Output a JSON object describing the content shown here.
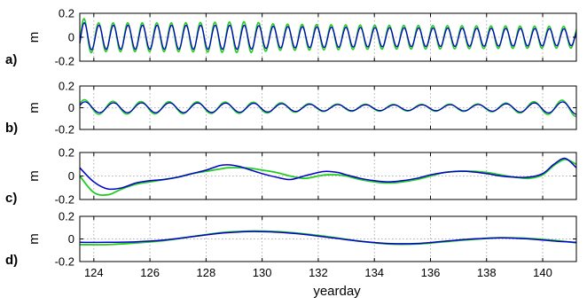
{
  "chart_data": {
    "type": "line",
    "xlabel": "yearday",
    "xlim": [
      123.5,
      141.2
    ],
    "xticks": [
      124,
      126,
      128,
      130,
      132,
      134,
      136,
      138,
      140
    ],
    "grid": true,
    "colors": {
      "series_a": "#0000c8",
      "series_b": "#22cc22"
    },
    "panels": [
      {
        "label": "a)",
        "ylabel": "m",
        "ylim": [
          -0.2,
          0.2
        ],
        "yticks": [
          0.2,
          0,
          -0.2
        ],
        "model": {
          "type": "oscillation",
          "period_days": 0.518,
          "phase_days": 0.25,
          "envelope_x": [
            123.5,
            124.0,
            127.0,
            129.5,
            130.5,
            134.0,
            138.0,
            141.2
          ],
          "amp_blue": [
            0.13,
            0.1,
            0.1,
            0.1,
            0.09,
            0.08,
            0.075,
            0.07
          ],
          "amp_green": [
            0.17,
            0.12,
            0.12,
            0.13,
            0.11,
            0.1,
            0.095,
            0.09
          ]
        }
      },
      {
        "label": "b)",
        "ylabel": "m",
        "ylim": [
          -0.2,
          0.2
        ],
        "yticks": [
          0.2,
          0,
          -0.2
        ],
        "model": {
          "type": "oscillation",
          "period_days": 1.0,
          "phase_days": 0.45,
          "envelope_x": [
            123.5,
            124.0,
            127.0,
            130.0,
            132.0,
            135.0,
            138.0,
            140.5,
            141.2
          ],
          "amp_blue": [
            0.06,
            0.045,
            0.045,
            0.04,
            0.03,
            0.025,
            0.03,
            0.05,
            0.06
          ],
          "amp_green": [
            0.08,
            0.06,
            0.055,
            0.05,
            0.035,
            0.03,
            0.035,
            0.065,
            0.08
          ]
        }
      },
      {
        "label": "c)",
        "ylabel": "m",
        "ylim": [
          -0.2,
          0.2
        ],
        "yticks": [
          0.2,
          0,
          -0.2
        ],
        "blue": {
          "x": [
            123.5,
            124.0,
            124.5,
            125.0,
            125.5,
            126.0,
            126.5,
            127.0,
            127.5,
            128.0,
            128.5,
            128.8,
            129.2,
            129.6,
            130.0,
            130.5,
            131.0,
            131.5,
            132.0,
            132.3,
            132.7,
            133.0,
            133.5,
            134.0,
            134.5,
            135.0,
            135.5,
            136.0,
            136.5,
            137.0,
            137.5,
            138.0,
            138.5,
            139.0,
            139.5,
            140.0,
            140.4,
            140.8,
            141.2
          ],
          "y": [
            0.07,
            -0.05,
            -0.11,
            -0.1,
            -0.06,
            -0.04,
            -0.03,
            -0.01,
            0.02,
            0.05,
            0.09,
            0.095,
            0.08,
            0.05,
            0.02,
            -0.01,
            -0.03,
            0.0,
            0.03,
            0.04,
            0.03,
            0.01,
            -0.02,
            -0.04,
            -0.05,
            -0.04,
            -0.02,
            0.01,
            0.03,
            0.04,
            0.035,
            0.02,
            0.0,
            -0.01,
            -0.01,
            0.02,
            0.1,
            0.15,
            0.07
          ]
        },
        "green": {
          "x": [
            123.5,
            124.0,
            124.5,
            125.0,
            125.5,
            126.0,
            126.5,
            127.0,
            127.5,
            128.0,
            128.5,
            128.8,
            129.2,
            129.6,
            130.0,
            130.5,
            131.0,
            131.5,
            132.0,
            132.3,
            132.7,
            133.0,
            133.5,
            134.0,
            134.5,
            135.0,
            135.5,
            136.0,
            136.5,
            137.0,
            137.5,
            138.0,
            138.5,
            139.0,
            139.5,
            140.0,
            140.4,
            140.8,
            141.2
          ],
          "y": [
            0.0,
            -0.14,
            -0.16,
            -0.11,
            -0.07,
            -0.05,
            -0.03,
            -0.01,
            0.02,
            0.04,
            0.06,
            0.07,
            0.07,
            0.065,
            0.05,
            0.03,
            0.0,
            -0.02,
            0.0,
            0.01,
            0.01,
            0.0,
            -0.03,
            -0.05,
            -0.06,
            -0.05,
            -0.03,
            0.0,
            0.03,
            0.04,
            0.04,
            0.03,
            0.01,
            -0.01,
            -0.02,
            0.01,
            0.09,
            0.14,
            0.1
          ]
        }
      },
      {
        "label": "d)",
        "ylabel": "m",
        "ylim": [
          -0.2,
          0.2
        ],
        "yticks": [
          0.2,
          0,
          -0.2
        ],
        "blue": {
          "x": [
            123.5,
            124.5,
            125.5,
            126.5,
            127.5,
            128.5,
            129.5,
            130.5,
            131.5,
            132.5,
            133.5,
            134.5,
            135.5,
            136.5,
            137.5,
            138.5,
            139.5,
            140.5,
            141.2
          ],
          "y": [
            -0.03,
            -0.03,
            -0.025,
            -0.01,
            0.02,
            0.05,
            0.065,
            0.06,
            0.04,
            0.01,
            -0.02,
            -0.04,
            -0.04,
            -0.02,
            0.0,
            0.01,
            0.0,
            -0.02,
            -0.03
          ]
        },
        "green": {
          "x": [
            123.5,
            124.5,
            125.5,
            126.5,
            127.5,
            128.5,
            129.5,
            130.5,
            131.5,
            132.5,
            133.5,
            134.5,
            135.5,
            136.5,
            137.5,
            138.5,
            139.5,
            140.5,
            141.2
          ],
          "y": [
            -0.05,
            -0.05,
            -0.035,
            -0.015,
            0.02,
            0.055,
            0.07,
            0.065,
            0.045,
            0.015,
            -0.02,
            -0.045,
            -0.045,
            -0.025,
            -0.005,
            0.01,
            0.005,
            -0.015,
            -0.035
          ]
        }
      }
    ]
  }
}
